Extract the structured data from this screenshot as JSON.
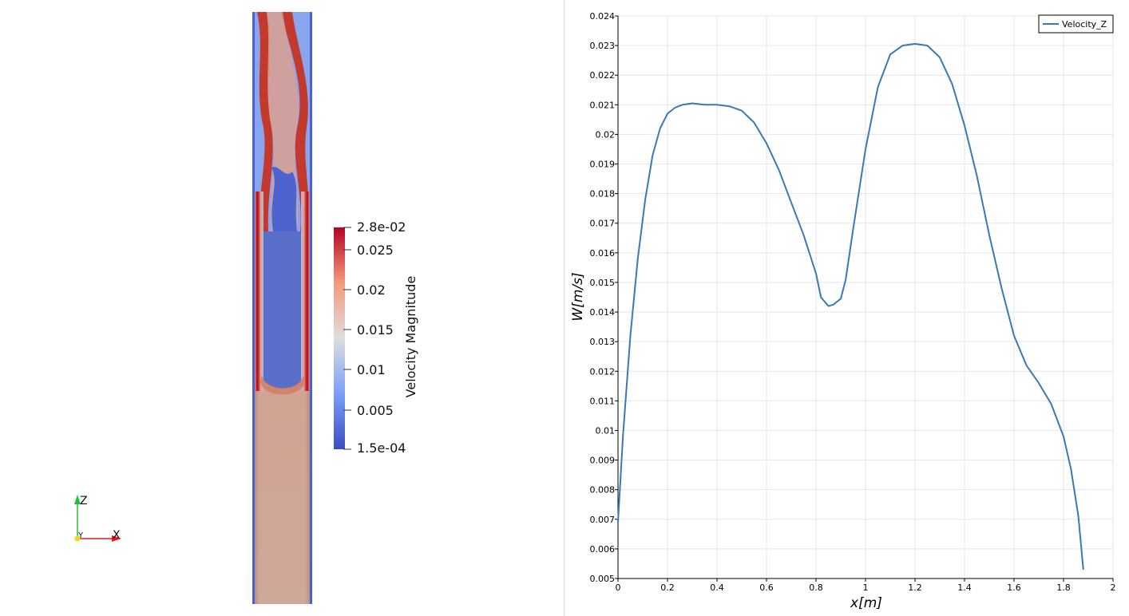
{
  "left_view": {
    "colorbar": {
      "title": "Velocity Magnitude",
      "max_label": "2.8e-02",
      "min_label": "1.5e-04",
      "tick_labels": [
        "0.025",
        "0.02",
        "0.015",
        "0.01",
        "0.005"
      ],
      "range": [
        0.00015,
        0.028
      ],
      "colormap": "Cool to Warm",
      "colors": {
        "low": "#3b4cc0",
        "mid": "#dddddd",
        "high": "#b40426"
      }
    },
    "axes_triad": {
      "z_label": "Z",
      "y_label": "Y",
      "x_label": "X",
      "colors": {
        "x": "#e11b1b",
        "y": "#f2d61a",
        "z": "#1fbf3a"
      }
    }
  },
  "chart_data": {
    "type": "line",
    "xlabel": "x[m]",
    "ylabel": "W[m/s]",
    "xlim": [
      0,
      2
    ],
    "ylim": [
      0.005,
      0.024
    ],
    "x_ticks": [
      "0",
      "0.2",
      "0.4",
      "0.6",
      "0.8",
      "1",
      "1.2",
      "1.4",
      "1.6",
      "1.8",
      "2"
    ],
    "y_ticks": [
      "0.005",
      "0.006",
      "0.007",
      "0.008",
      "0.009",
      "0.01",
      "0.011",
      "0.012",
      "0.013",
      "0.014",
      "0.015",
      "0.016",
      "0.017",
      "0.018",
      "0.019",
      "0.02",
      "0.021",
      "0.022",
      "0.023",
      "0.024"
    ],
    "grid": true,
    "legend_position": "top-right",
    "series": [
      {
        "name": "Velocity_Z",
        "color": "#3a79b6",
        "x": [
          0,
          0.02,
          0.05,
          0.08,
          0.11,
          0.14,
          0.17,
          0.2,
          0.23,
          0.26,
          0.3,
          0.35,
          0.4,
          0.45,
          0.5,
          0.55,
          0.6,
          0.65,
          0.7,
          0.75,
          0.8,
          0.82,
          0.85,
          0.87,
          0.9,
          0.92,
          0.95,
          1.0,
          1.05,
          1.1,
          1.15,
          1.2,
          1.25,
          1.3,
          1.35,
          1.4,
          1.45,
          1.5,
          1.55,
          1.6,
          1.65,
          1.7,
          1.75,
          1.8,
          1.83,
          1.86,
          1.88
        ],
        "y": [
          0.0069,
          0.0098,
          0.0132,
          0.0158,
          0.0178,
          0.0193,
          0.0202,
          0.0207,
          0.0209,
          0.021,
          0.02105,
          0.021,
          0.021,
          0.02095,
          0.0208,
          0.0204,
          0.0197,
          0.0188,
          0.0177,
          0.0166,
          0.0153,
          0.0145,
          0.0142,
          0.01425,
          0.01445,
          0.0151,
          0.0168,
          0.0195,
          0.0216,
          0.0227,
          0.023,
          0.02306,
          0.023,
          0.0226,
          0.0217,
          0.0203,
          0.0186,
          0.0166,
          0.0148,
          0.0132,
          0.0122,
          0.0116,
          0.0109,
          0.0098,
          0.0087,
          0.0071,
          0.0053
        ]
      }
    ]
  }
}
